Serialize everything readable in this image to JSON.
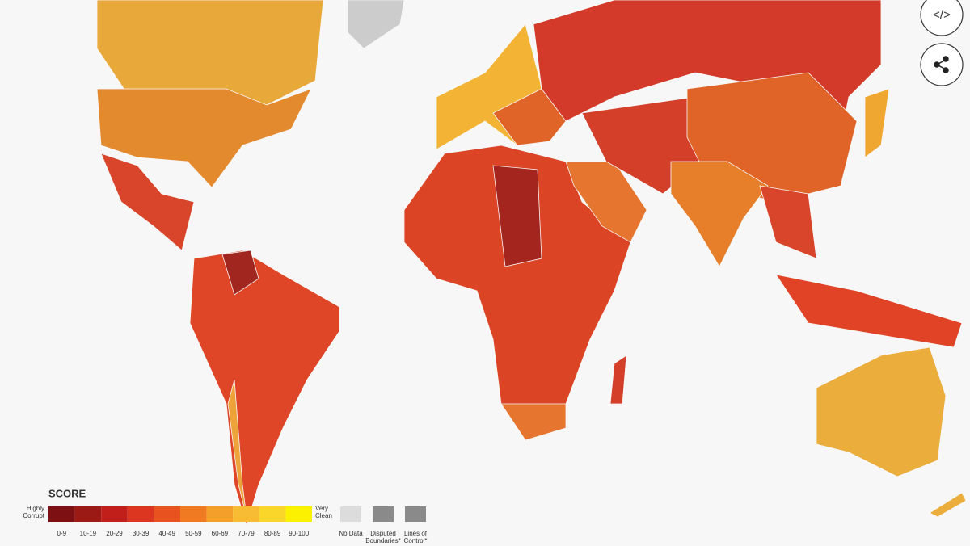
{
  "legend": {
    "title": "SCORE",
    "low_label": [
      "Highly",
      "Corrupt"
    ],
    "high_label": [
      "Very",
      "Clean"
    ],
    "bins": [
      {
        "label": "0-9",
        "color": "#7d1012"
      },
      {
        "label": "10-19",
        "color": "#9c1a16"
      },
      {
        "label": "20-29",
        "color": "#c01f1a"
      },
      {
        "label": "30-39",
        "color": "#dc3520"
      },
      {
        "label": "40-49",
        "color": "#e8521f"
      },
      {
        "label": "50-59",
        "color": "#ef7a22"
      },
      {
        "label": "60-69",
        "color": "#f59f2b"
      },
      {
        "label": "70-79",
        "color": "#f7bc33"
      },
      {
        "label": "80-89",
        "color": "#fad62a"
      },
      {
        "label": "90-100",
        "color": "#fbf100"
      }
    ],
    "extras": [
      {
        "label": [
          "No Data"
        ],
        "color": "#dcdcdc"
      },
      {
        "label": [
          "Disputed",
          "Boundaries*"
        ],
        "color": "#8a8a8a"
      },
      {
        "label": [
          "Lines of",
          "Control*"
        ],
        "color": "#8a8a8a"
      }
    ]
  },
  "buttons": {
    "embed": "</>"
  }
}
